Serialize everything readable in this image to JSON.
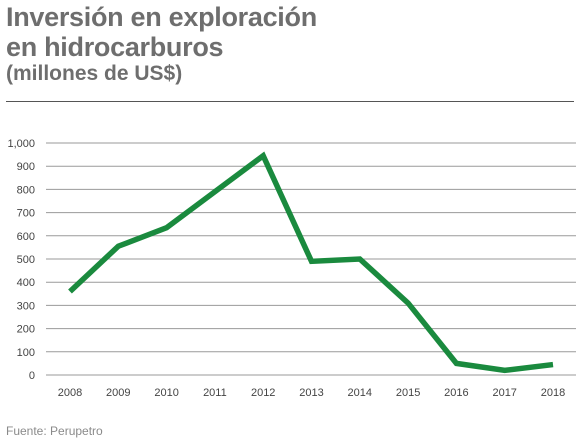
{
  "header": {
    "title_line1": "Inversión en exploración",
    "title_line2": "en hidrocarburos",
    "subtitle": "(millones de US$)"
  },
  "source": "Fuente: Perupetro",
  "colors": {
    "line": "#1a8a3e",
    "title": "#6e6e6e",
    "grid": "#9a9a9a",
    "text": "#444444"
  },
  "chart_data": {
    "type": "line",
    "title": "Inversión en exploración en hidrocarburos",
    "subtitle": "(millones de US$)",
    "xlabel": "",
    "ylabel": "",
    "x": [
      "2008",
      "2009",
      "2010",
      "2011",
      "2012",
      "2013",
      "2014",
      "2015",
      "2016",
      "2017",
      "2018"
    ],
    "series": [
      {
        "values": [
          360,
          555,
          635,
          790,
          945,
          490,
          500,
          310,
          50,
          20,
          45
        ]
      }
    ],
    "ylim": [
      0,
      1000
    ],
    "yticks": [
      0,
      100,
      200,
      300,
      400,
      500,
      600,
      700,
      800,
      900,
      1000
    ],
    "ytick_labels": [
      "0",
      "100",
      "200",
      "300",
      "400",
      "500",
      "600",
      "700",
      "800",
      "900",
      "1,000"
    ],
    "grid": true,
    "legend": "none"
  }
}
